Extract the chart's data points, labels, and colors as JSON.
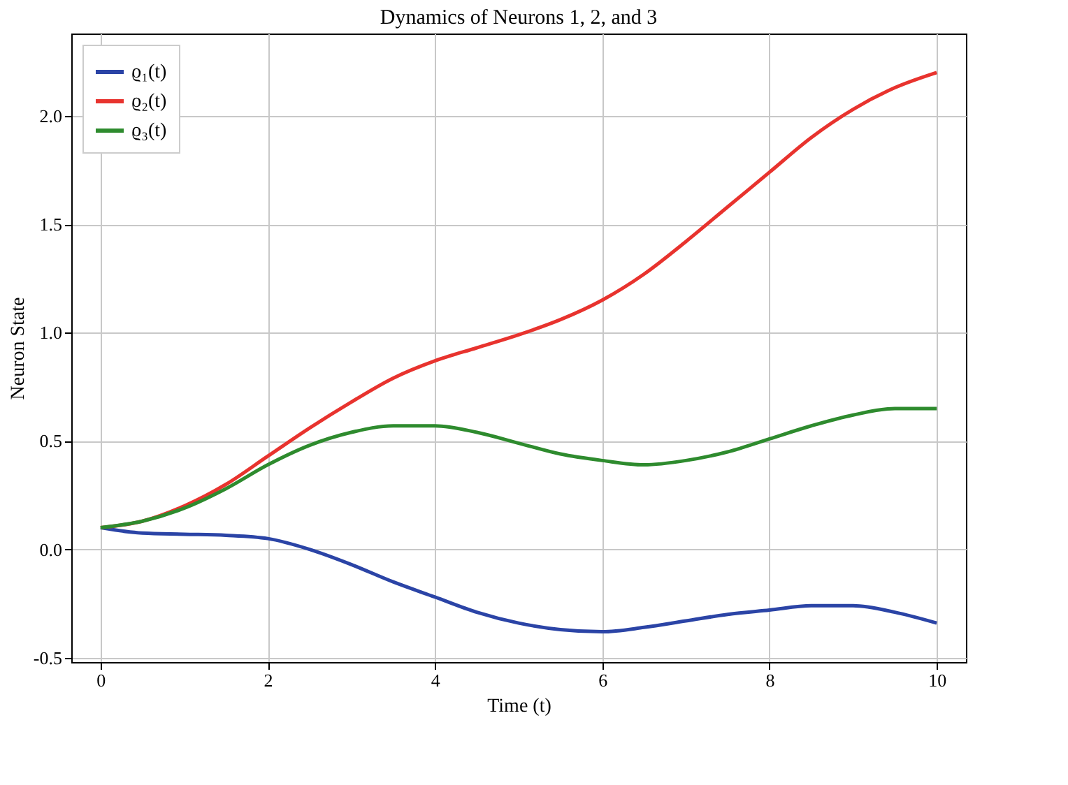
{
  "chart_data": {
    "type": "line",
    "title": "Dynamics of Neurons 1, 2, and 3",
    "xlabel": "Time (t)",
    "ylabel": "Neuron State",
    "x": [
      0,
      0.5,
      1,
      1.5,
      2,
      2.5,
      3,
      3.5,
      4,
      4.5,
      5,
      5.5,
      6,
      6.5,
      7,
      7.5,
      8,
      8.5,
      9,
      9.5,
      10
    ],
    "series": [
      {
        "name": "ϱ₁(t)",
        "color": "#2b44a6",
        "values": [
          0.1,
          0.075,
          0.07,
          0.065,
          0.05,
          0.0,
          -0.07,
          -0.15,
          -0.22,
          -0.29,
          -0.34,
          -0.37,
          -0.38,
          -0.36,
          -0.33,
          -0.3,
          -0.28,
          -0.26,
          -0.26,
          -0.29,
          -0.34
        ]
      },
      {
        "name": "ϱ₂(t)",
        "color": "#e8332e",
        "values": [
          0.1,
          0.13,
          0.2,
          0.3,
          0.43,
          0.56,
          0.68,
          0.79,
          0.87,
          0.93,
          0.99,
          1.06,
          1.15,
          1.27,
          1.42,
          1.58,
          1.74,
          1.9,
          2.03,
          2.13,
          2.2
        ]
      },
      {
        "name": "ϱ₃(t)",
        "color": "#2e8b2e",
        "values": [
          0.1,
          0.13,
          0.19,
          0.28,
          0.39,
          0.48,
          0.54,
          0.57,
          0.57,
          0.54,
          0.49,
          0.44,
          0.41,
          0.39,
          0.41,
          0.45,
          0.51,
          0.57,
          0.62,
          0.65,
          0.65
        ]
      }
    ],
    "xlim": [
      -0.35,
      10.35
    ],
    "xticks": [
      0,
      2,
      4,
      6,
      8,
      10
    ],
    "ylim": [
      -0.52,
      2.38
    ],
    "yticks": [
      {
        "value": -0.5,
        "label": "-0.5"
      },
      {
        "value": 0,
        "label": "0.0"
      },
      {
        "value": 0.5,
        "label": "0.5"
      },
      {
        "value": 1,
        "label": "1.0"
      },
      {
        "value": 1.5,
        "label": "1.5"
      },
      {
        "value": 2,
        "label": "2.0"
      }
    ],
    "grid": true,
    "legend": "top left",
    "marker": "none",
    "line_style": "solid"
  }
}
